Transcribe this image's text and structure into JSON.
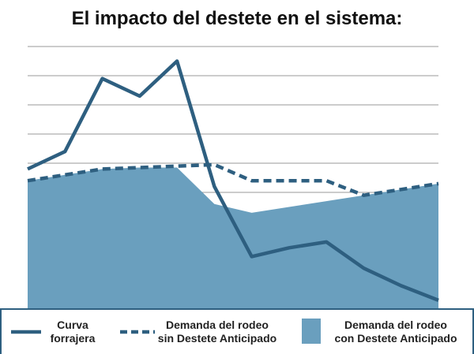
{
  "chart_data": {
    "type": "line",
    "title": "El impacto del destete en el sistema:",
    "x": [
      0,
      1,
      2,
      3,
      4,
      5,
      6,
      7,
      8,
      9,
      10,
      11
    ],
    "ylim": [
      0,
      10
    ],
    "grid": true,
    "legend_position": "bottom",
    "series": [
      {
        "name": "Curva forrajera",
        "style": "solid-line",
        "color": "#2e5f80",
        "values": [
          4.8,
          5.4,
          7.9,
          7.3,
          8.5,
          4.2,
          1.8,
          2.1,
          2.3,
          1.4,
          0.8,
          0.3
        ]
      },
      {
        "name": "Demanda del rodeo sin Destete Anticipado",
        "style": "dashed-line",
        "color": "#2e5f80",
        "values": [
          4.4,
          4.6,
          4.8,
          4.85,
          4.9,
          4.95,
          4.4,
          4.4,
          4.4,
          3.9,
          4.1,
          4.3
        ]
      },
      {
        "name": "Demanda del rodeo con Destete Anticipado",
        "style": "area",
        "color": "#6a9fbe",
        "values": [
          4.4,
          4.6,
          4.8,
          4.85,
          4.85,
          3.6,
          3.3,
          3.5,
          3.7,
          3.9,
          4.1,
          4.3
        ]
      }
    ]
  },
  "legend": {
    "item1_line1": "Curva",
    "item1_line2": "forrajera",
    "item2_line1": "Demanda del rodeo",
    "item2_line2": "sin Destete Anticipado",
    "item3_line1": "Demanda del rodeo",
    "item3_line2": "con Destete Anticipado"
  }
}
